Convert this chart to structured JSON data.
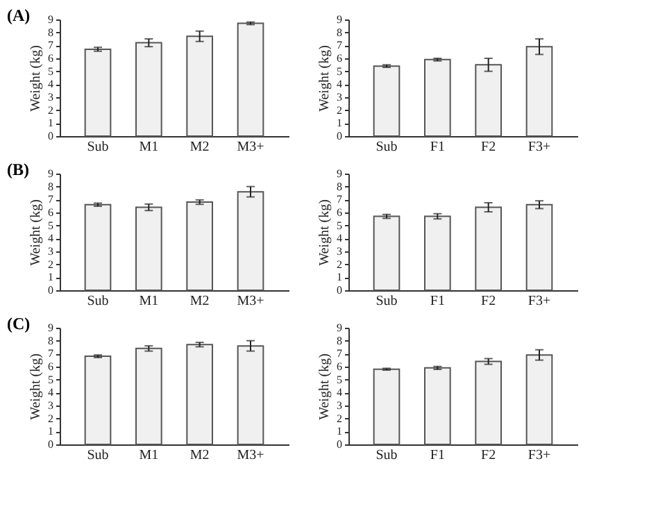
{
  "chart_data": [
    {
      "type": "bar",
      "title": "(A)",
      "ylabel": "Weight (kg)",
      "categories": [
        "Sub",
        "M1",
        "M2",
        "M3+"
      ],
      "values": [
        6.7,
        7.2,
        7.7,
        8.7
      ],
      "errors": [
        0.15,
        0.3,
        0.4,
        0.1
      ],
      "color": "#f0f0f0",
      "ylim": [
        0,
        9
      ],
      "yticks": [
        0,
        1,
        2,
        3,
        4,
        5,
        6,
        7,
        8,
        9
      ]
    },
    {
      "type": "bar",
      "ylabel": "Weight (kg)",
      "categories": [
        "Sub",
        "F1",
        "F2",
        "F3+"
      ],
      "values": [
        5.4,
        5.9,
        5.5,
        6.9
      ],
      "errors": [
        0.1,
        0.1,
        0.5,
        0.6
      ],
      "color": "#f0f0f0",
      "ylim": [
        0,
        9
      ],
      "yticks": [
        0,
        1,
        2,
        3,
        4,
        5,
        6,
        7,
        8,
        9
      ]
    },
    {
      "type": "bar",
      "title": "(B)",
      "ylabel": "Weight (kg)",
      "categories": [
        "Sub",
        "M1",
        "M2",
        "M3+"
      ],
      "values": [
        6.6,
        6.4,
        6.8,
        7.6
      ],
      "errors": [
        0.12,
        0.25,
        0.17,
        0.4
      ],
      "color": "#f0f0f0",
      "ylim": [
        0,
        9
      ],
      "yticks": [
        0,
        1,
        2,
        3,
        4,
        5,
        6,
        7,
        8,
        9
      ]
    },
    {
      "type": "bar",
      "ylabel": "Weight (kg)",
      "categories": [
        "Sub",
        "F1",
        "F2",
        "F3+"
      ],
      "values": [
        5.7,
        5.7,
        6.4,
        6.6
      ],
      "errors": [
        0.15,
        0.2,
        0.35,
        0.3
      ],
      "color": "#f0f0f0",
      "ylim": [
        0,
        9
      ],
      "yticks": [
        0,
        1,
        2,
        3,
        4,
        5,
        6,
        7,
        8,
        9
      ]
    },
    {
      "type": "bar",
      "title": "(C)",
      "ylabel": "Weight (kg)",
      "categories": [
        "Sub",
        "M1",
        "M2",
        "M3+"
      ],
      "values": [
        6.8,
        7.4,
        7.7,
        7.6
      ],
      "errors": [
        0.1,
        0.2,
        0.17,
        0.4
      ],
      "color": "#f0f0f0",
      "ylim": [
        0,
        9
      ],
      "yticks": [
        0,
        1,
        2,
        3,
        4,
        5,
        6,
        7,
        8,
        9
      ]
    },
    {
      "type": "bar",
      "ylabel": "Weight (kg)",
      "categories": [
        "Sub",
        "F1",
        "F2",
        "F3+"
      ],
      "values": [
        5.8,
        5.9,
        6.4,
        6.9
      ],
      "errors": [
        0.07,
        0.12,
        0.22,
        0.4
      ],
      "color": "#f0f0f0",
      "ylim": [
        0,
        9
      ],
      "yticks": [
        0,
        1,
        2,
        3,
        4,
        5,
        6,
        7,
        8,
        9
      ]
    }
  ]
}
